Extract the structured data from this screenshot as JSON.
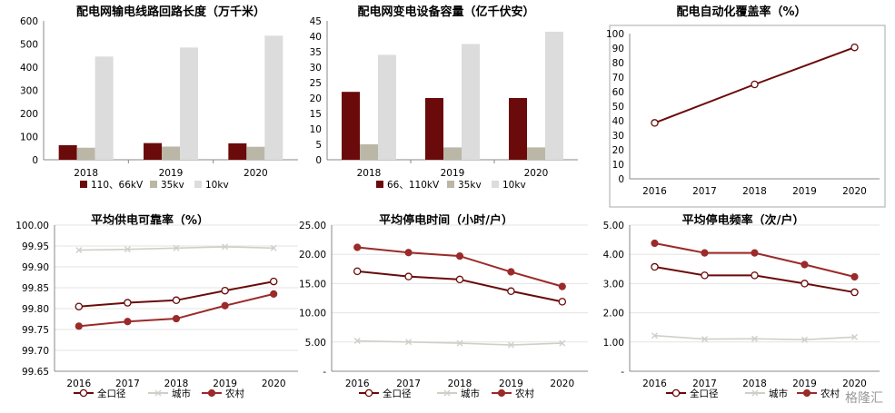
{
  "watermark": "格隆汇",
  "colors": {
    "dark_red": "#6b0a0a",
    "red": "#9b2a2a",
    "khaki": "#bab7a7",
    "light_gray": "#dcdcdc",
    "city_gray": "#cfcfc8",
    "axis": "#888888"
  },
  "chart_data": [
    {
      "id": "c1",
      "type": "bar",
      "title": "配电网输电线路回路长度（万千米）",
      "categories": [
        "2018",
        "2019",
        "2020"
      ],
      "series": [
        {
          "name": "110、66kV",
          "values": [
            63,
            72,
            71
          ],
          "color": "#6b0a0a"
        },
        {
          "name": "35kv",
          "values": [
            52,
            57,
            56
          ],
          "color": "#bab7a7"
        },
        {
          "name": "10kv",
          "values": [
            446,
            485,
            536
          ],
          "color": "#dcdcdc"
        }
      ],
      "ylim": [
        0,
        600
      ],
      "yticks": [
        "0",
        "100",
        "200",
        "300",
        "400",
        "500",
        "600"
      ],
      "legend_position": "bottom"
    },
    {
      "id": "c2",
      "type": "bar",
      "title": "配电网变电设备容量（亿千伏安）",
      "categories": [
        "2018",
        "2019",
        "2020"
      ],
      "series": [
        {
          "name": "66、110kV",
          "values": [
            22,
            20,
            20
          ],
          "color": "#6b0a0a"
        },
        {
          "name": "35kv",
          "values": [
            5,
            4,
            4
          ],
          "color": "#bab7a7"
        },
        {
          "name": "10kv",
          "values": [
            34,
            37.5,
            41.5
          ],
          "color": "#dcdcdc"
        }
      ],
      "ylim": [
        0,
        45
      ],
      "yticks": [
        "0",
        "5",
        "10",
        "15",
        "20",
        "25",
        "30",
        "35",
        "40",
        "45"
      ],
      "legend_position": "bottom"
    },
    {
      "id": "c3",
      "type": "line",
      "title": "配电自动化覆盖率（%）",
      "x": [
        "2016",
        "2017",
        "2018",
        "2019",
        "2020"
      ],
      "series": [
        {
          "name": "",
          "values": [
            38.5,
            null,
            65,
            null,
            90.5
          ],
          "color": "#6b0a0a",
          "marker": "circle-open"
        }
      ],
      "ylim": [
        0,
        100
      ],
      "yticks": [
        "0",
        "10",
        "20",
        "30",
        "40",
        "50",
        "60",
        "70",
        "80",
        "90",
        "100"
      ],
      "grid": false,
      "legend_position": "none"
    },
    {
      "id": "c4",
      "type": "line",
      "title": "平均供电可靠率（%）",
      "x": [
        "2016",
        "2017",
        "2018",
        "2019",
        "2020"
      ],
      "series": [
        {
          "name": "全口径",
          "values": [
            99.805,
            99.814,
            99.82,
            99.843,
            99.865
          ],
          "color": "#6b0a0a",
          "marker": "circle-open"
        },
        {
          "name": "城市",
          "values": [
            99.94,
            99.942,
            99.945,
            99.948,
            99.945
          ],
          "color": "#cfcfc8",
          "marker": "x"
        },
        {
          "name": "农村",
          "values": [
            99.758,
            99.769,
            99.776,
            99.807,
            99.835
          ],
          "color": "#9b2a2a",
          "marker": "circle-filled"
        }
      ],
      "ylim": [
        99.65,
        100.0
      ],
      "yticks": [
        "99.65",
        "99.70",
        "99.75",
        "99.80",
        "99.85",
        "99.90",
        "99.95",
        "100.00"
      ],
      "grid": true,
      "legend_position": "bottom"
    },
    {
      "id": "c5",
      "type": "line",
      "title": "平均停电时间（小时/户）",
      "x": [
        "2016",
        "2017",
        "2018",
        "2019",
        "2020"
      ],
      "series": [
        {
          "name": "全口径",
          "values": [
            17.1,
            16.2,
            15.7,
            13.7,
            11.9
          ],
          "color": "#6b0a0a",
          "marker": "circle-open"
        },
        {
          "name": "城市",
          "values": [
            5.2,
            5.0,
            4.8,
            4.5,
            4.8
          ],
          "color": "#cfcfc8",
          "marker": "x"
        },
        {
          "name": "农村",
          "values": [
            21.2,
            20.3,
            19.7,
            17.0,
            14.5
          ],
          "color": "#9b2a2a",
          "marker": "circle-filled"
        }
      ],
      "ylim": [
        0,
        25
      ],
      "yticks": [
        "-",
        "5.00",
        "10.00",
        "15.00",
        "20.00",
        "25.00"
      ],
      "grid": true,
      "legend_position": "bottom"
    },
    {
      "id": "c6",
      "type": "line",
      "title": "平均停电频率（次/户）",
      "x": [
        "2016",
        "2017",
        "2018",
        "2019",
        "2020"
      ],
      "series": [
        {
          "name": "全口径",
          "values": [
            3.57,
            3.28,
            3.28,
            3.0,
            2.7
          ],
          "color": "#6b0a0a",
          "marker": "circle-open"
        },
        {
          "name": "城市",
          "values": [
            1.22,
            1.1,
            1.11,
            1.08,
            1.17
          ],
          "color": "#cfcfc8",
          "marker": "x"
        },
        {
          "name": "农村",
          "values": [
            4.38,
            4.05,
            4.05,
            3.65,
            3.23
          ],
          "color": "#9b2a2a",
          "marker": "circle-filled"
        }
      ],
      "ylim": [
        0,
        5
      ],
      "yticks": [
        "-",
        "1.00",
        "2.00",
        "3.00",
        "4.00",
        "5.00"
      ],
      "grid": true,
      "legend_position": "bottom"
    }
  ]
}
